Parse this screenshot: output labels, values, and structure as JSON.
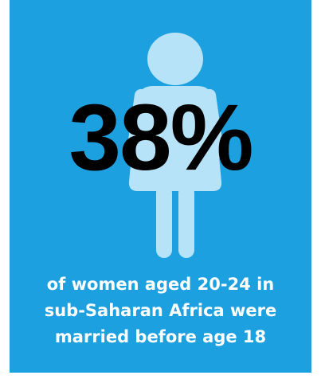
{
  "stat": {
    "value": "38%"
  },
  "caption": {
    "lines": [
      "of women aged 20-24 in",
      "sub-Saharan Africa were",
      "married before age 18"
    ]
  },
  "colors": {
    "background": "#1ca0e0",
    "figure": "#b7e3f8",
    "stat_text": "#000000",
    "caption_text": "#ffffff"
  },
  "icons": {
    "figure": "girl-figure-icon"
  }
}
